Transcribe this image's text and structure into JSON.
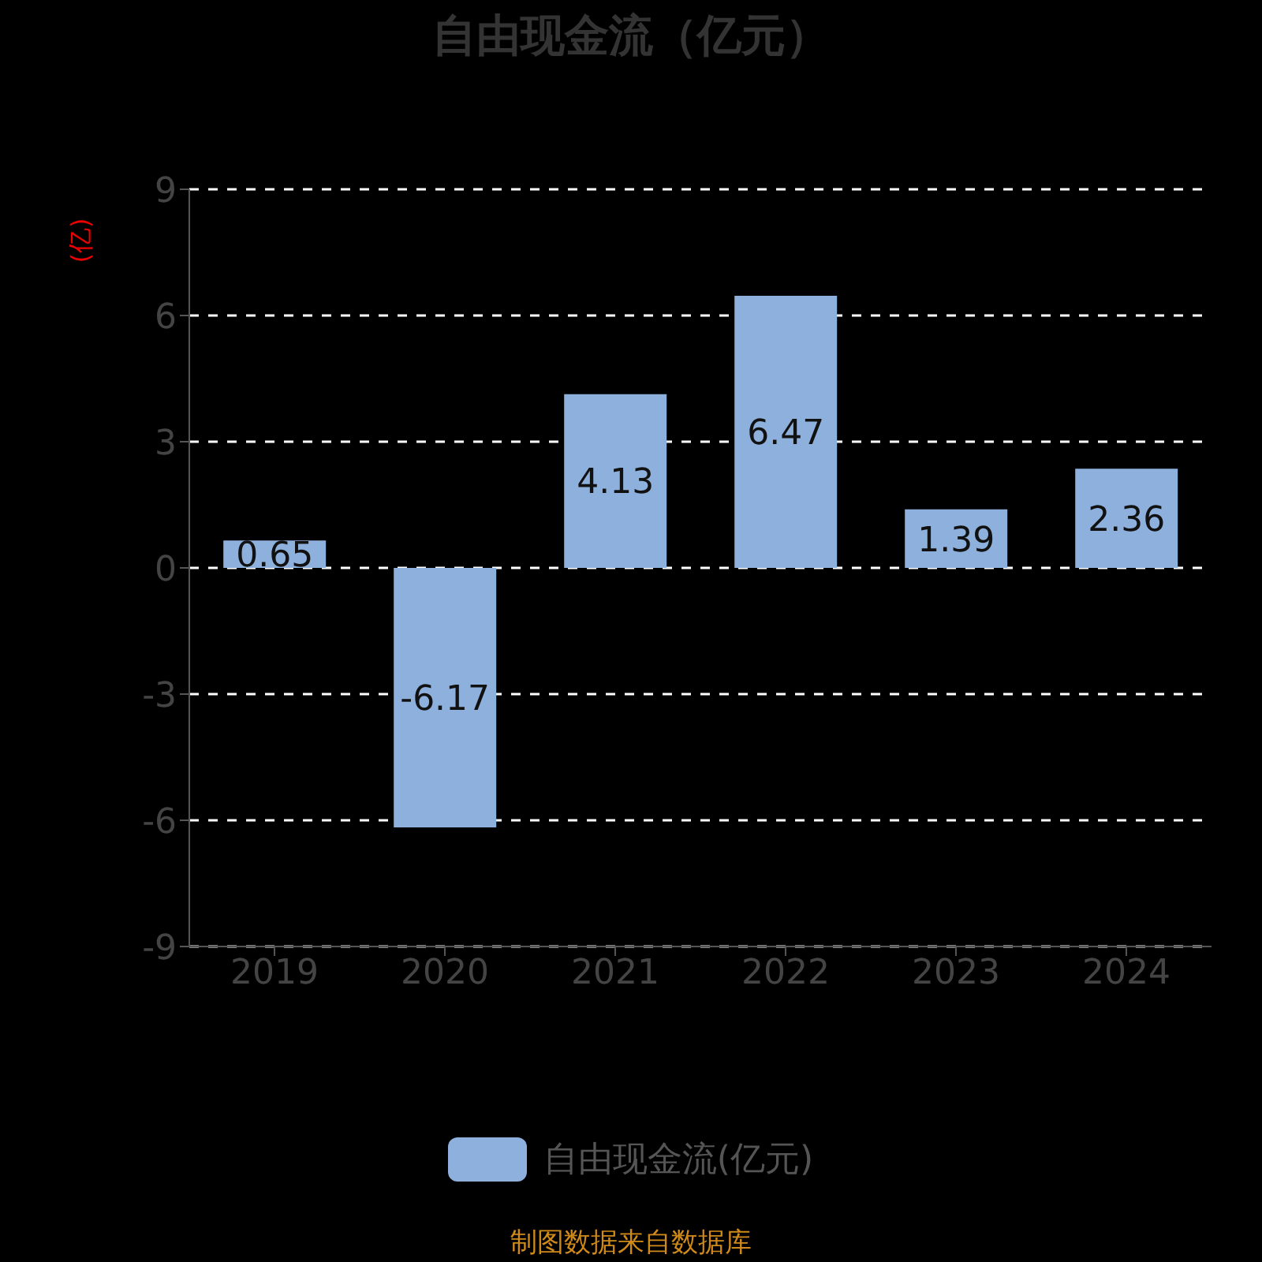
{
  "chart_data": {
    "type": "bar",
    "title": "自由现金流（亿元）",
    "ylabel": "(亿)",
    "categories": [
      "2019",
      "2020",
      "2021",
      "2022",
      "2023",
      "2024"
    ],
    "series": [
      {
        "name": "自由现金流(亿元)",
        "color": "#8eb0dc",
        "values": [
          0.65,
          -6.17,
          4.13,
          6.47,
          1.39,
          2.36
        ]
      }
    ],
    "ylim": [
      -9,
      9
    ],
    "yticks": [
      -9,
      -6,
      -3,
      0,
      3,
      6,
      9
    ],
    "grid": "y",
    "legend": "bottom",
    "data_labels": true,
    "annotations": [
      "制图数据来自数据库"
    ]
  }
}
